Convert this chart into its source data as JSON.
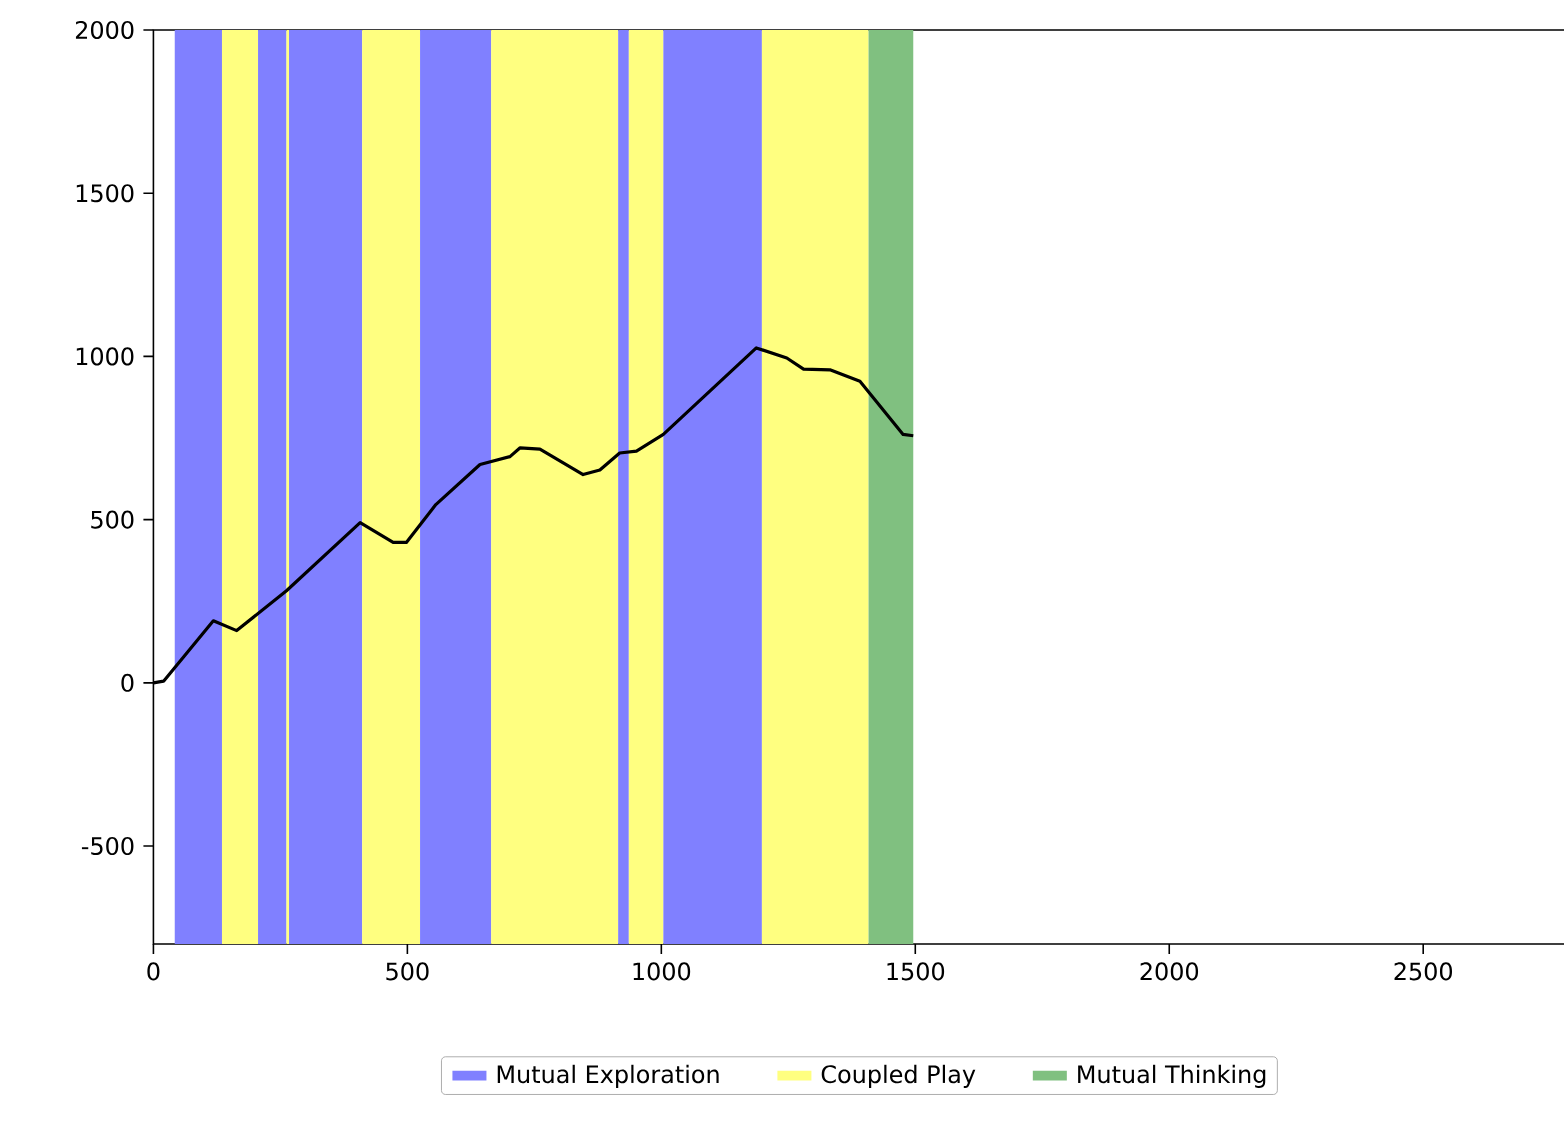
{
  "chart_data": {
    "type": "line",
    "xlim": [
      0,
      2780
    ],
    "ylim": [
      -800,
      2000
    ],
    "xticks": [
      0,
      500,
      1000,
      1500,
      2000,
      2500
    ],
    "yticks": [
      -500,
      0,
      500,
      1000,
      1500,
      2000
    ],
    "grid": false,
    "legend": "bottom",
    "marker": "none",
    "line_style": "solid",
    "series": [
      {
        "color": "#000000",
        "x": [
          0,
          20,
          118,
          164,
          262,
          407,
          472,
          498,
          556,
          643,
          702,
          722,
          761,
          846,
          879,
          918,
          951,
          1004,
          1187,
          1247,
          1280,
          1332,
          1391,
          1476,
          1496
        ],
        "values": [
          0,
          5,
          190,
          160,
          282,
          491,
          430,
          430,
          546,
          669,
          693,
          720,
          716,
          638,
          652,
          704,
          710,
          761,
          1026,
          995,
          961,
          959,
          924,
          761,
          757
        ]
      }
    ],
    "bands": [
      {
        "axis": "x",
        "from": 42,
        "to": 135,
        "color": "#8080ff",
        "label": "Mutual Exploration"
      },
      {
        "axis": "x",
        "from": 135,
        "to": 206,
        "color": "#ffff80",
        "label": "Coupled Play"
      },
      {
        "axis": "x",
        "from": 206,
        "to": 262,
        "color": "#8080ff"
      },
      {
        "axis": "x",
        "from": 262,
        "to": 267,
        "color": "#ffff80"
      },
      {
        "axis": "x",
        "from": 267,
        "to": 411,
        "color": "#8080ff"
      },
      {
        "axis": "x",
        "from": 411,
        "to": 525,
        "color": "#ffff80"
      },
      {
        "axis": "x",
        "from": 525,
        "to": 665,
        "color": "#8080ff"
      },
      {
        "axis": "x",
        "from": 665,
        "to": 915,
        "color": "#ffff80"
      },
      {
        "axis": "x",
        "from": 915,
        "to": 936,
        "color": "#8080ff"
      },
      {
        "axis": "x",
        "from": 936,
        "to": 1004,
        "color": "#ffff80"
      },
      {
        "axis": "x",
        "from": 1004,
        "to": 1198,
        "color": "#8080ff"
      },
      {
        "axis": "x",
        "from": 1198,
        "to": 1408,
        "color": "#ffff80"
      },
      {
        "axis": "x",
        "from": 1408,
        "to": 1496,
        "color": "#80c080",
        "label": "Mutual Thinking"
      }
    ]
  }
}
